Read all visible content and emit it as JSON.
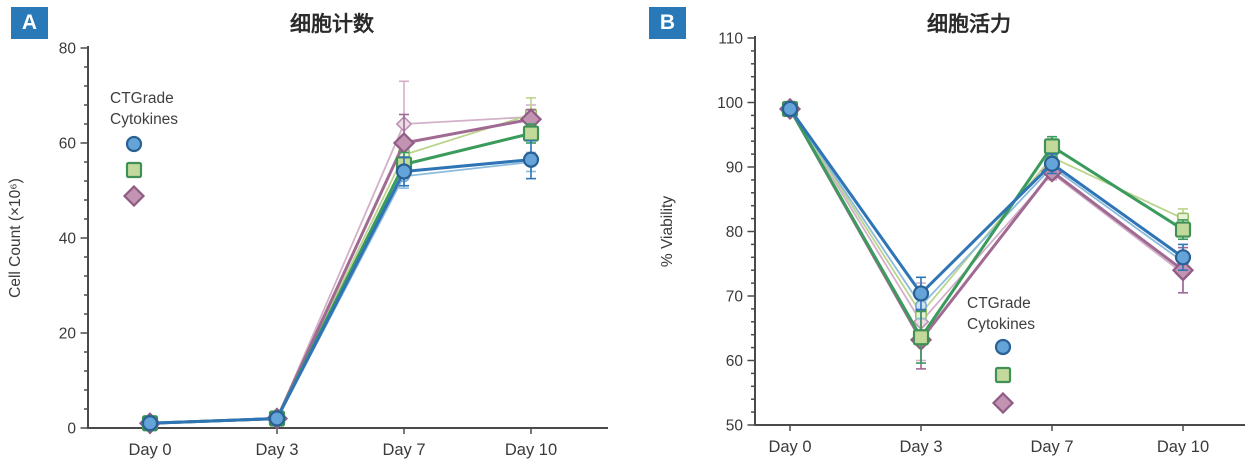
{
  "page": {
    "background": "#ffffff"
  },
  "colors": {
    "badge_bg": "#2979b8",
    "badge_text": "#ffffff",
    "axis": "#4a4a4a",
    "tick_text": "#3a3a3a",
    "title_text": "#2b2b2b",
    "legend_text": "#3f3f3f",
    "series": {
      "blue": {
        "dark": {
          "line": "#2f74b5",
          "fill": "#64a4d8",
          "stroke": "#2a6094"
        },
        "light": {
          "line": "#8bbbdd",
          "fill": "#cfe2f1",
          "stroke": "#74a9d2"
        }
      },
      "green": {
        "dark": {
          "line": "#3a9b5c",
          "fill": "#c3d99b",
          "stroke": "#3f9156"
        },
        "light": {
          "line": "#bcd48d",
          "fill": "#eaf1d9",
          "stroke": "#96c068"
        }
      },
      "pink": {
        "dark": {
          "line": "#a06a93",
          "fill": "#c393b2",
          "stroke": "#8f5c85"
        },
        "light": {
          "line": "#d3b0c9",
          "fill": "#ecdde7",
          "stroke": "#bd93b2"
        }
      }
    }
  },
  "chart_data": [
    {
      "type": "line",
      "badge": "A",
      "title": "细胞计数",
      "xlabel": "",
      "ylabel": "Cell Count (×10⁶)",
      "categories": [
        "Day 0",
        "Day 3",
        "Day 7",
        "Day 10"
      ],
      "ylim": [
        0,
        80
      ],
      "ytick_major": 20,
      "ytick_minor": 4,
      "grid": false,
      "legend": {
        "title_lines": [
          "CTGrade",
          "Cytokines"
        ],
        "position": "upper-left-inside",
        "items": [
          {
            "marker": "circle",
            "color": "blue",
            "shade": "dark"
          },
          {
            "marker": "square",
            "color": "green",
            "shade": "dark"
          },
          {
            "marker": "diamond",
            "color": "pink",
            "shade": "dark"
          }
        ]
      },
      "series": [
        {
          "name": "pink-light",
          "marker": "diamond",
          "color": "pink",
          "shade": "light",
          "values": [
            1,
            2,
            64,
            65.5
          ],
          "errors": [
            0,
            0,
            9,
            2.5
          ]
        },
        {
          "name": "green-light",
          "marker": "square",
          "color": "green",
          "shade": "light",
          "values": [
            1,
            2,
            57.5,
            66
          ],
          "errors": [
            0,
            0,
            3,
            3.5
          ]
        },
        {
          "name": "blue-light",
          "marker": "circle",
          "color": "blue",
          "shade": "light",
          "values": [
            1,
            1.8,
            53,
            56
          ],
          "errors": [
            0,
            0,
            2.5,
            2
          ]
        },
        {
          "name": "pink-ctgrade",
          "marker": "diamond",
          "color": "pink",
          "shade": "dark",
          "values": [
            1,
            2,
            60,
            65
          ],
          "errors": [
            0,
            0,
            6,
            2
          ]
        },
        {
          "name": "green-ctgrade",
          "marker": "square",
          "color": "green",
          "shade": "dark",
          "values": [
            1,
            2,
            55.5,
            62
          ],
          "errors": [
            0,
            0,
            2.5,
            2
          ]
        },
        {
          "name": "blue-ctgrade",
          "marker": "circle",
          "color": "blue",
          "shade": "dark",
          "values": [
            1,
            2,
            54,
            56.5
          ],
          "errors": [
            0.8,
            0.8,
            3,
            4
          ]
        }
      ]
    },
    {
      "type": "line",
      "badge": "B",
      "title": "细胞活力",
      "xlabel": "",
      "ylabel": "% Viability",
      "categories": [
        "Day 0",
        "Day 3",
        "Day 7",
        "Day 10"
      ],
      "ylim": [
        50,
        110
      ],
      "ytick_major": 10,
      "ytick_minor": 2,
      "grid": false,
      "legend": {
        "title_lines": [
          "CTGrade",
          "Cytokines"
        ],
        "position": "lower-middle-inside",
        "items": [
          {
            "marker": "circle",
            "color": "blue",
            "shade": "dark"
          },
          {
            "marker": "square",
            "color": "green",
            "shade": "dark"
          },
          {
            "marker": "diamond",
            "color": "pink",
            "shade": "dark"
          }
        ]
      },
      "series": [
        {
          "name": "pink-light",
          "marker": "diamond",
          "color": "pink",
          "shade": "light",
          "values": [
            99,
            66,
            89,
            73.5
          ],
          "errors": [
            0,
            6,
            1,
            3
          ]
        },
        {
          "name": "green-light",
          "marker": "square",
          "color": "green",
          "shade": "light",
          "values": [
            99,
            67.3,
            91.5,
            82
          ],
          "errors": [
            0,
            4,
            1,
            1.5
          ]
        },
        {
          "name": "blue-light",
          "marker": "circle",
          "color": "blue",
          "shade": "light",
          "values": [
            99,
            68.5,
            90,
            75.3
          ],
          "errors": [
            0,
            2,
            1,
            1.5
          ]
        },
        {
          "name": "pink-ctgrade",
          "marker": "diamond",
          "color": "pink",
          "shade": "dark",
          "values": [
            99,
            63.2,
            89.3,
            74
          ],
          "errors": [
            0,
            4.5,
            1,
            3.5
          ]
        },
        {
          "name": "green-ctgrade",
          "marker": "square",
          "color": "green",
          "shade": "dark",
          "values": [
            99,
            63.6,
            93.2,
            80.3
          ],
          "errors": [
            0,
            4,
            1.5,
            1.5
          ]
        },
        {
          "name": "blue-ctgrade",
          "marker": "circle",
          "color": "blue",
          "shade": "dark",
          "values": [
            99,
            70.4,
            90.5,
            76
          ],
          "errors": [
            1,
            2.5,
            1.5,
            2
          ]
        }
      ]
    }
  ]
}
